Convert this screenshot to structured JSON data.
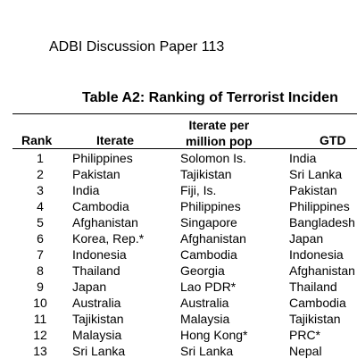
{
  "header": {
    "paper": "ADBI Discussion Paper 113"
  },
  "table": {
    "title": "Table A2: Ranking of Terrorist Inciden",
    "columns": {
      "rank": "Rank",
      "iterate": "Iterate",
      "iterate_pm_line1": "Iterate per",
      "iterate_pm_line2": "million pop",
      "gtd": "GTD"
    },
    "rows": [
      {
        "rank": "1",
        "iterate": "Philippines",
        "iterate_pm": "Solomon Is.",
        "gtd": "India"
      },
      {
        "rank": "2",
        "iterate": "Pakistan",
        "iterate_pm": "Tajikistan",
        "gtd": "Sri Lanka"
      },
      {
        "rank": "3",
        "iterate": "India",
        "iterate_pm": "Fiji, Is.",
        "gtd": "Pakistan"
      },
      {
        "rank": "4",
        "iterate": "Cambodia",
        "iterate_pm": "Philippines",
        "gtd": "Philippines"
      },
      {
        "rank": "5",
        "iterate": "Afghanistan",
        "iterate_pm": "Singapore",
        "gtd": "Bangladesh"
      },
      {
        "rank": "6",
        "iterate": "Korea, Rep.*",
        "iterate_pm": "Afghanistan",
        "gtd": "Japan"
      },
      {
        "rank": "7",
        "iterate": "Indonesia",
        "iterate_pm": "Cambodia",
        "gtd": "Indonesia"
      },
      {
        "rank": "8",
        "iterate": "Thailand",
        "iterate_pm": "Georgia",
        "gtd": "Afghanistan"
      },
      {
        "rank": "9",
        "iterate": "Japan",
        "iterate_pm": "Lao PDR*",
        "gtd": "Thailand"
      },
      {
        "rank": "10",
        "iterate": "Australia",
        "iterate_pm": "Australia",
        "gtd": "Cambodia"
      },
      {
        "rank": "11",
        "iterate": "Tajikistan",
        "iterate_pm": "Malaysia",
        "gtd": "Tajikistan"
      },
      {
        "rank": "12",
        "iterate": "Malaysia",
        "iterate_pm": "Hong Kong*",
        "gtd": "PRC*"
      },
      {
        "rank": "13",
        "iterate": "Sri Lanka",
        "iterate_pm": "Sri Lanka",
        "gtd": "Nepal"
      }
    ]
  }
}
